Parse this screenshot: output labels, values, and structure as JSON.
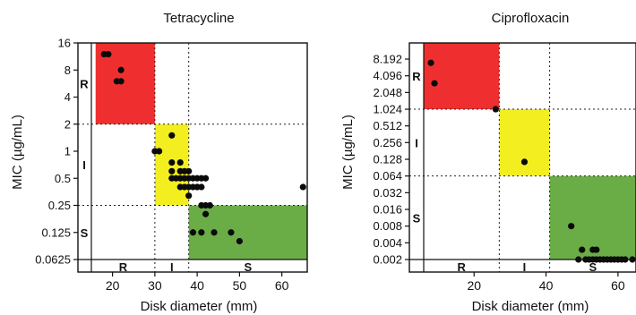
{
  "chart_data": [
    {
      "type": "scatter",
      "title": "Tetracycline",
      "xlabel": "Disk diameter (mm)",
      "ylabel": "MIC (µg/mL)",
      "y_scale": "log2",
      "xlim": [
        15,
        66
      ],
      "ylim": [
        0.0625,
        16
      ],
      "yticks": [
        16,
        8,
        4,
        2,
        1,
        0.5,
        0.25,
        0.125,
        0.0625
      ],
      "ytick_labels": [
        "16",
        "8",
        "4",
        "2",
        "1",
        "0.5",
        "0.25",
        "0.125",
        "0.0625"
      ],
      "xticks": [
        20,
        30,
        40,
        50,
        60
      ],
      "xtick_labels": [
        "20",
        "30",
        "40",
        "50",
        "60"
      ],
      "mic_zones": [
        "R",
        "I",
        "S"
      ],
      "disk_zones": [
        "R",
        "I",
        "S"
      ],
      "breakpoints": {
        "mic_r_ge": 2,
        "mic_s_le": 0.25,
        "disk_r_le": 30,
        "disk_s_ge": 38
      },
      "zones": [
        {
          "label": "R",
          "color": "#ef2f2f",
          "x": [
            16,
            30
          ],
          "y": [
            2,
            16
          ]
        },
        {
          "label": "I",
          "color": "#f2ee1f",
          "x": [
            30,
            38
          ],
          "y": [
            0.25,
            2
          ]
        },
        {
          "label": "S",
          "color": "#6aad47",
          "x": [
            38,
            66
          ],
          "y": [
            0.0625,
            0.25
          ]
        }
      ],
      "points": [
        {
          "x": 18,
          "y": 12
        },
        {
          "x": 19,
          "y": 12
        },
        {
          "x": 21,
          "y": 6
        },
        {
          "x": 22,
          "y": 8
        },
        {
          "x": 22,
          "y": 6
        },
        {
          "x": 30,
          "y": 1
        },
        {
          "x": 31,
          "y": 1
        },
        {
          "x": 34,
          "y": 1.5
        },
        {
          "x": 34,
          "y": 0.75
        },
        {
          "x": 36,
          "y": 0.75
        },
        {
          "x": 34,
          "y": 0.6
        },
        {
          "x": 34,
          "y": 0.5
        },
        {
          "x": 35,
          "y": 0.5
        },
        {
          "x": 36,
          "y": 0.5
        },
        {
          "x": 37,
          "y": 0.5
        },
        {
          "x": 38,
          "y": 0.5
        },
        {
          "x": 39,
          "y": 0.5
        },
        {
          "x": 40,
          "y": 0.5
        },
        {
          "x": 41,
          "y": 0.5
        },
        {
          "x": 42,
          "y": 0.5
        },
        {
          "x": 36,
          "y": 0.6
        },
        {
          "x": 37,
          "y": 0.6
        },
        {
          "x": 38,
          "y": 0.6
        },
        {
          "x": 36,
          "y": 0.4
        },
        {
          "x": 37,
          "y": 0.4
        },
        {
          "x": 38,
          "y": 0.4
        },
        {
          "x": 39,
          "y": 0.4
        },
        {
          "x": 40,
          "y": 0.4
        },
        {
          "x": 41,
          "y": 0.4
        },
        {
          "x": 38,
          "y": 0.32
        },
        {
          "x": 40,
          "y": 0.4
        },
        {
          "x": 41,
          "y": 0.25
        },
        {
          "x": 42,
          "y": 0.25
        },
        {
          "x": 43,
          "y": 0.25
        },
        {
          "x": 42,
          "y": 0.2
        },
        {
          "x": 39,
          "y": 0.125
        },
        {
          "x": 41,
          "y": 0.125
        },
        {
          "x": 44,
          "y": 0.125
        },
        {
          "x": 48,
          "y": 0.125
        },
        {
          "x": 50,
          "y": 0.1
        },
        {
          "x": 65,
          "y": 0.4
        }
      ]
    },
    {
      "type": "scatter",
      "title": "Ciprofloxacin",
      "xlabel": "Disk diameter (mm)",
      "ylabel": "MIC (µg/mL)",
      "y_scale": "log2",
      "xlim": [
        6,
        65
      ],
      "ylim": [
        0.002,
        16
      ],
      "yticks": [
        8.192,
        4.096,
        2.048,
        1.024,
        0.512,
        0.256,
        0.128,
        0.064,
        0.032,
        0.016,
        0.008,
        0.004,
        0.002
      ],
      "ytick_labels": [
        "8.192",
        "4.096",
        "2.048",
        "1.024",
        "0.512",
        "0.256",
        "0.128",
        "0.064",
        "0.032",
        "0.016",
        "0.008",
        "0.004",
        "0.002"
      ],
      "xticks": [
        20,
        40,
        60
      ],
      "xtick_labels": [
        "20",
        "40",
        "60"
      ],
      "mic_zones": [
        "R",
        "I",
        "S"
      ],
      "disk_zones": [
        "R",
        "I",
        "S"
      ],
      "breakpoints": {
        "mic_r_ge": 1.024,
        "mic_s_le": 0.064,
        "disk_r_le": 27,
        "disk_s_ge": 41
      },
      "zones": [
        {
          "label": "R",
          "color": "#ef2f2f",
          "x": [
            6,
            27
          ],
          "y": [
            1.024,
            16
          ]
        },
        {
          "label": "I",
          "color": "#f2ee1f",
          "x": [
            27,
            41
          ],
          "y": [
            0.064,
            1.024
          ]
        },
        {
          "label": "S",
          "color": "#6aad47",
          "x": [
            41,
            65
          ],
          "y": [
            0.002,
            0.064
          ]
        }
      ],
      "points": [
        {
          "x": 8,
          "y": 7
        },
        {
          "x": 9,
          "y": 3
        },
        {
          "x": 26,
          "y": 1.024
        },
        {
          "x": 34,
          "y": 0.115
        },
        {
          "x": 47,
          "y": 0.008
        },
        {
          "x": 50,
          "y": 0.003
        },
        {
          "x": 53,
          "y": 0.003
        },
        {
          "x": 54,
          "y": 0.003
        },
        {
          "x": 49,
          "y": 0.002
        },
        {
          "x": 51,
          "y": 0.002
        },
        {
          "x": 52,
          "y": 0.002
        },
        {
          "x": 53,
          "y": 0.002
        },
        {
          "x": 54,
          "y": 0.002
        },
        {
          "x": 55,
          "y": 0.002
        },
        {
          "x": 56,
          "y": 0.002
        },
        {
          "x": 57,
          "y": 0.002
        },
        {
          "x": 58,
          "y": 0.002
        },
        {
          "x": 59,
          "y": 0.002
        },
        {
          "x": 60,
          "y": 0.002
        },
        {
          "x": 61,
          "y": 0.002
        },
        {
          "x": 62,
          "y": 0.002
        },
        {
          "x": 64,
          "y": 0.002
        }
      ]
    }
  ]
}
